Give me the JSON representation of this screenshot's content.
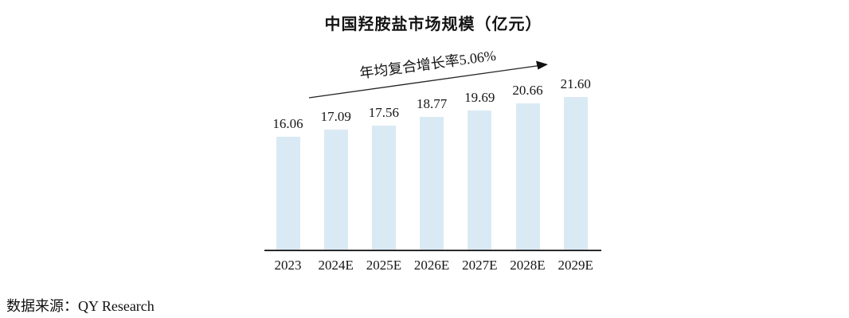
{
  "chart_data": {
    "type": "bar",
    "title": "中国羟胺盐市场规模（亿元）",
    "categories": [
      "2023",
      "2024E",
      "2025E",
      "2026E",
      "2027E",
      "2028E",
      "2029E"
    ],
    "values": [
      16.06,
      17.09,
      17.56,
      18.77,
      19.69,
      20.66,
      21.6
    ],
    "annotation": "年均复合增长率5.06%",
    "xlabel": "",
    "ylabel": "",
    "ylim": [
      0,
      24
    ],
    "grid": false,
    "legend": "none",
    "value_labels_shown": true,
    "bar_color": "#daeaf5",
    "axis_color": "#2b2b2b",
    "text_color": "#141414"
  },
  "source": {
    "label": "数据来源：QY Research"
  }
}
